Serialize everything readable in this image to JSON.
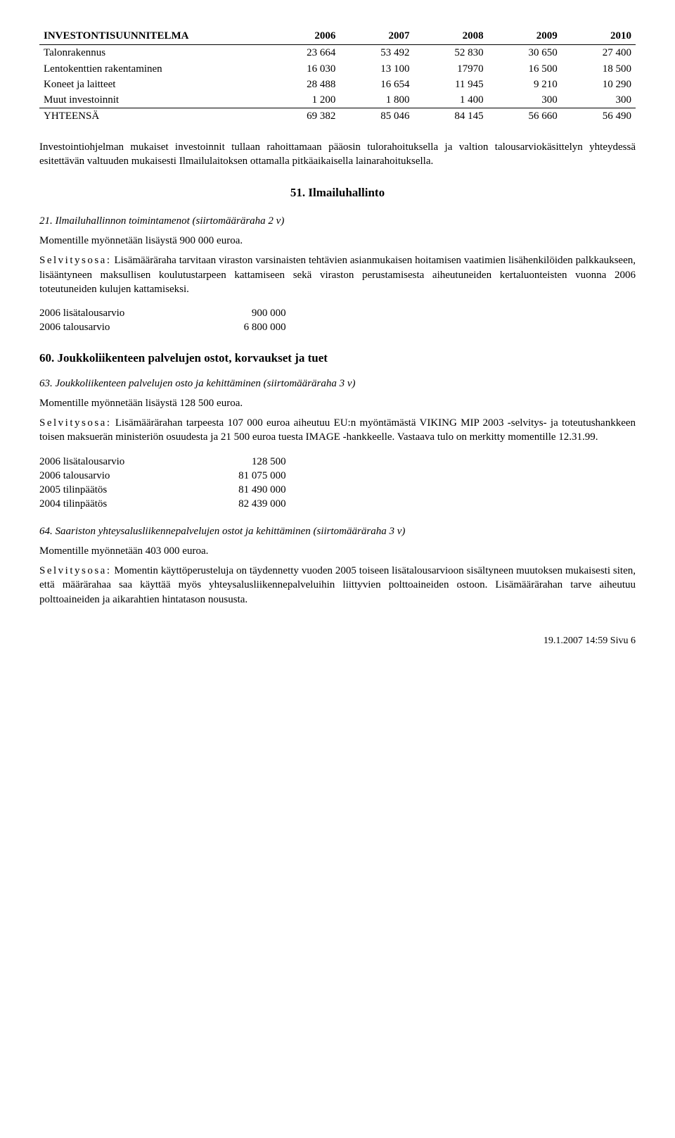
{
  "table1": {
    "headers": [
      "INVESTONTISUUNNITELMA",
      "2006",
      "2007",
      "2008",
      "2009",
      "2010"
    ],
    "rows": [
      [
        "Talonrakennus",
        "23 664",
        "53 492",
        "52 830",
        "30 650",
        "27 400"
      ],
      [
        "Lentokenttien rakentaminen",
        "16 030",
        "13 100",
        "17970",
        "16 500",
        "18 500"
      ],
      [
        "Koneet ja laitteet",
        "28 488",
        "16 654",
        "11 945",
        "9 210",
        "10 290"
      ],
      [
        "Muut investoinnit",
        "1 200",
        "1 800",
        "1 400",
        "300",
        "300"
      ]
    ],
    "total": [
      "YHTEENSÄ",
      "69 382",
      "85 046",
      "84 145",
      "56 660",
      "56 490"
    ]
  },
  "para_after_table": "Investointiohjelman mukaiset investoinnit tullaan rahoittamaan pääosin tulorahoituksella ja valtion talousarviokäsittelyn yhteydessä esitettävän valtuuden mukaisesti Ilmailulaitoksen ottamalla pitkäaikaisella lainarahoituksella.",
  "section51": {
    "heading": "51. Ilmailuhallinto",
    "item21_head": "21. Ilmailuhallinnon toimintamenot (siirtomääräraha 2 v)",
    "item21_moment": "Momentille myönnetään lisäystä 900 000 euroa.",
    "item21_body": "Lisämääräraha tarvitaan viraston varsinaisten tehtävien asianmukaisen hoitamisen vaatimien lisähenkilöiden palkkaukseen, lisääntyneen maksullisen koulutustarpeen kattamiseen sekä viraston perustamisesta aiheutuneiden kertaluonteisten vuonna 2006 toteutuneiden kulujen kattamiseksi.",
    "item21_budget": [
      [
        "2006 lisätalousarvio",
        "900 000"
      ],
      [
        "2006 talousarvio",
        "6 800 000"
      ]
    ]
  },
  "section60": {
    "heading": "60. Joukkoliikenteen palvelujen ostot, korvaukset ja tuet",
    "item63_head": "63. Joukkoliikenteen palvelujen osto ja kehittäminen (siirtomääräraha 3 v)",
    "item63_moment": "Momentille myönnetään lisäystä 128 500 euroa.",
    "item63_body": "Lisämäärärahan tarpeesta 107 000 euroa aiheutuu EU:n myöntämästä VIKING MIP 2003 -selvitys- ja toteutushankkeen toisen maksuerän ministeriön osuudesta ja 21 500 euroa tuesta IMAGE -hankkeelle. Vastaava tulo on merkitty momentille 12.31.99.",
    "item63_budget": [
      [
        "2006 lisätalousarvio",
        "128 500"
      ],
      [
        "2006 talousarvio",
        "81 075 000"
      ],
      [
        "2005 tilinpäätös",
        "81 490 000"
      ],
      [
        "2004 tilinpäätös",
        "82 439 000"
      ]
    ],
    "item64_head": "64. Saariston yhteysalusliikennepalvelujen ostot ja kehittäminen (siirtomääräraha 3 v)",
    "item64_moment": "Momentille myönnetään 403 000 euroa.",
    "item64_body": "Momentin käyttöperusteluja on täydennetty vuoden 2005 toiseen lisätalousarvioon sisältyneen muutoksen mukaisesti siten, että määrärahaa saa käyttää myös yhteysalusliikennepalveluihin liittyvien polttoaineiden ostoon. Lisämäärärahan tarve aiheutuu polttoaineiden ja aikarahtien hintatason noususta."
  },
  "selvitysosa_label": "Selvitysosa:",
  "footer": "19.1.2007 14:59 Sivu 6"
}
